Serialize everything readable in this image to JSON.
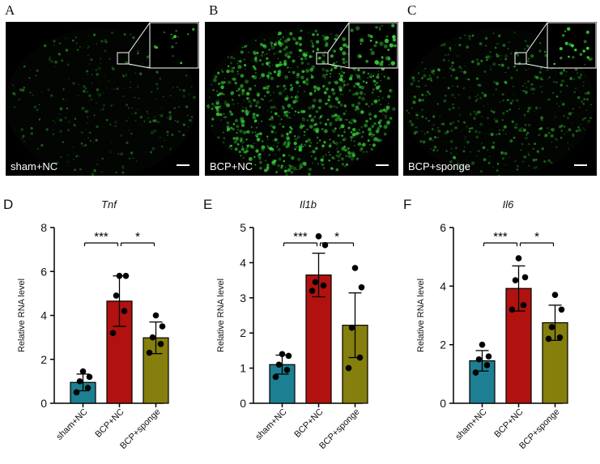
{
  "panels_top": [
    {
      "letter": "A",
      "label": "sham+NC",
      "density": 0.35,
      "intensity": 0.55
    },
    {
      "letter": "B",
      "label": "BCP+NC",
      "density": 1.0,
      "intensity": 1.0
    },
    {
      "letter": "C",
      "label": "BCP+sponge",
      "density": 0.55,
      "intensity": 0.7
    }
  ],
  "colors": {
    "sham": "#1c7f92",
    "bcp": "#b1120f",
    "sponge": "#857f0d",
    "fluor": "#3ad33a"
  },
  "chart_data": [
    {
      "letter": "D",
      "type": "bar",
      "title": "Tnf",
      "ylabel": "Relative RNA level",
      "ylim": [
        0,
        8
      ],
      "yticks": [
        "0",
        "2",
        "4",
        "6",
        "8"
      ],
      "categories": [
        "sham+NC",
        "BCP+NC",
        "BCP+sponge"
      ],
      "values": [
        0.95,
        4.65,
        2.98
      ],
      "errors": [
        0.38,
        1.15,
        0.72
      ],
      "points": [
        [
          0.5,
          0.7,
          1.0,
          1.2,
          1.45
        ],
        [
          3.2,
          4.2,
          4.9,
          5.8,
          5.8
        ],
        [
          2.3,
          2.7,
          3.0,
          3.5,
          4.0
        ]
      ],
      "sig": [
        {
          "from": 0,
          "to": 1,
          "label": "***"
        },
        {
          "from": 1,
          "to": 2,
          "label": "*"
        }
      ]
    },
    {
      "letter": "E",
      "type": "bar",
      "title": "Il1b",
      "ylabel": "Relative RNA level",
      "ylim": [
        0,
        5
      ],
      "yticks": [
        "0",
        "1",
        "2",
        "3",
        "4",
        "5"
      ],
      "categories": [
        "sham+NC",
        "BCP+NC",
        "BCP+sponge"
      ],
      "values": [
        1.1,
        3.65,
        2.22
      ],
      "errors": [
        0.27,
        0.62,
        0.92
      ],
      "points": [
        [
          0.75,
          0.95,
          1.1,
          1.35,
          1.4
        ],
        [
          3.2,
          3.35,
          3.45,
          4.5,
          4.75
        ],
        [
          1.0,
          1.3,
          2.15,
          3.3,
          3.85
        ]
      ],
      "sig": [
        {
          "from": 0,
          "to": 1,
          "label": "***"
        },
        {
          "from": 1,
          "to": 2,
          "label": "*"
        }
      ]
    },
    {
      "letter": "F",
      "type": "bar",
      "title": "Il6",
      "ylabel": "Relative RNA level",
      "ylim": [
        0,
        6
      ],
      "yticks": [
        "0",
        "2",
        "4",
        "6"
      ],
      "categories": [
        "sham+NC",
        "BCP+NC",
        "BCP+sponge"
      ],
      "values": [
        1.45,
        3.92,
        2.75
      ],
      "errors": [
        0.35,
        0.77,
        0.6
      ],
      "points": [
        [
          1.05,
          1.3,
          1.5,
          1.6,
          2.0
        ],
        [
          3.2,
          3.35,
          4.2,
          4.3,
          4.95
        ],
        [
          2.2,
          2.25,
          2.6,
          3.2,
          3.7
        ]
      ],
      "sig": [
        {
          "from": 0,
          "to": 1,
          "label": "***"
        },
        {
          "from": 1,
          "to": 2,
          "label": "*"
        }
      ]
    }
  ]
}
